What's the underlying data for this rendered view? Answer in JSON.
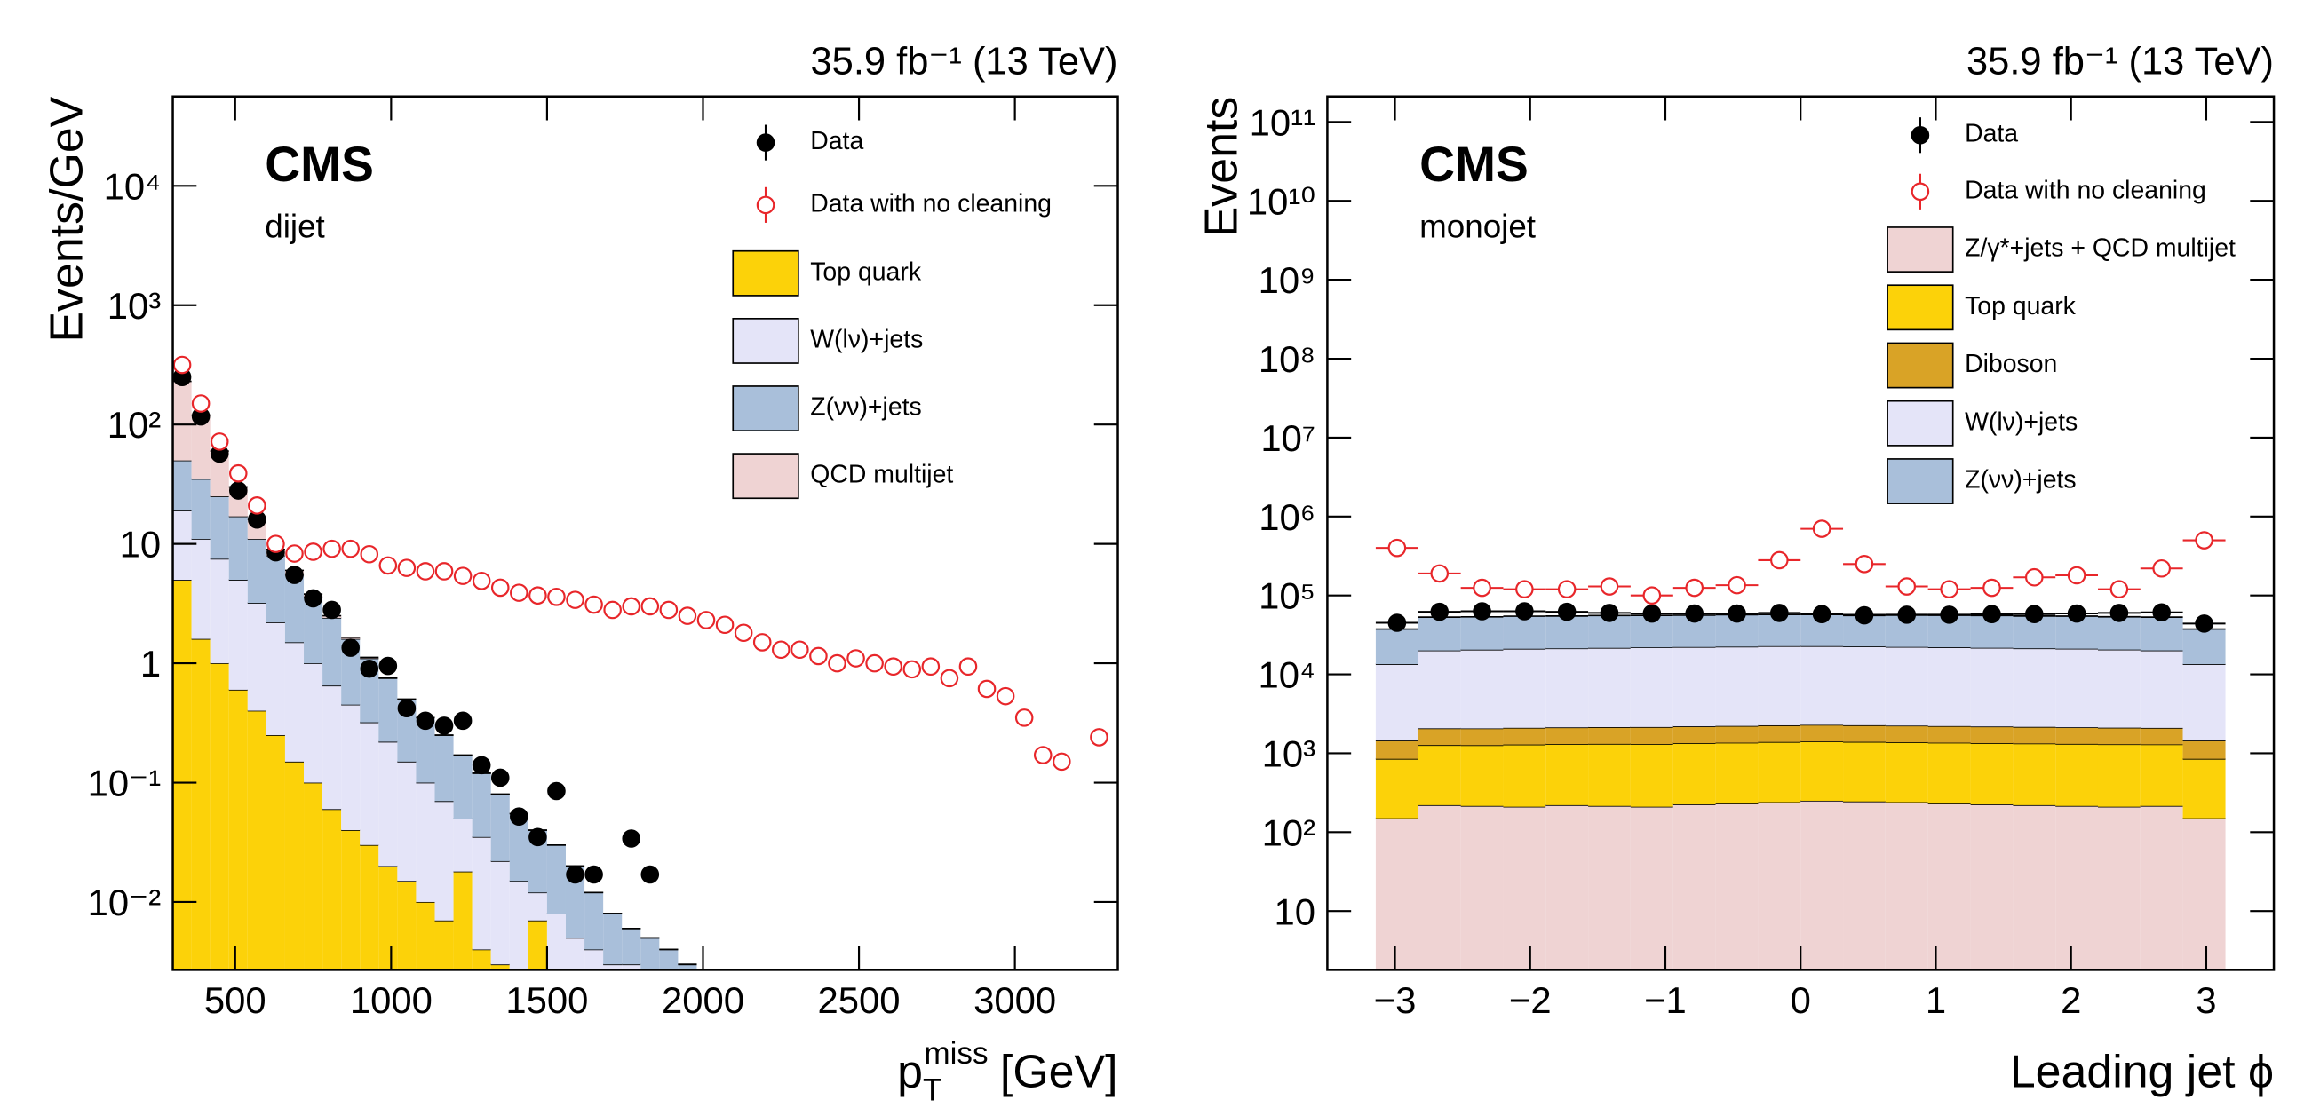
{
  "chart_data": [
    {
      "type": "stacked_histogram",
      "lumi": "35.9 fb⁻¹ (13 TeV)",
      "experiment": "CMS",
      "region": "dijet",
      "ylabel": "Events/GeV",
      "xlabel": {
        "symbol": "p",
        "sub": "T",
        "sup": "miss",
        "unit": "[GeV]"
      },
      "log_y": true,
      "xlim": [
        300,
        3330
      ],
      "ylim": [
        0.0027,
        56000
      ],
      "xticks": [
        500,
        1000,
        1500,
        2000,
        2500,
        3000
      ],
      "yticks": [
        {
          "value": 0.01,
          "label": "10⁻²"
        },
        {
          "value": 0.1,
          "label": "10⁻¹"
        },
        1,
        10,
        {
          "value": 100,
          "label": "10²"
        },
        {
          "value": 1000,
          "label": "10³"
        },
        {
          "value": 10000,
          "label": "10⁴"
        }
      ],
      "bins": [
        300,
        360,
        420,
        480,
        540,
        600,
        660,
        720,
        780,
        840,
        900,
        960,
        1020,
        1080,
        1140,
        1200,
        1260,
        1320,
        1380,
        1440,
        1500,
        1560,
        1620,
        1680,
        1740,
        1800,
        1860,
        1920,
        1980,
        2040,
        2100,
        2160,
        2220,
        2280,
        2340,
        2400,
        2460,
        2520,
        2580,
        2640,
        2700,
        2760,
        2820,
        2880,
        2940,
        3000,
        3060,
        3120,
        3180,
        3240,
        3300
      ],
      "points": [
        {
          "name": "Data",
          "color": "#000000",
          "marker": "filled",
          "values": [
            250,
            117,
            57,
            28,
            16,
            8.5,
            5.5,
            3.5,
            2.8,
            1.35,
            0.9,
            0.95,
            0.42,
            0.33,
            0.3,
            0.33,
            0.14,
            0.11,
            0.052,
            0.035,
            0.085,
            0.017,
            0.017,
            null,
            0.034,
            0.017,
            null,
            null,
            null,
            null,
            null,
            null,
            null,
            null,
            null,
            null,
            null,
            null,
            null,
            null,
            null,
            null,
            null,
            null,
            null,
            null,
            null,
            null,
            null,
            null
          ]
        },
        {
          "name": "Data with no cleaning",
          "color": "#e8262a",
          "marker": "open",
          "values": [
            316,
            150,
            72,
            39,
            21,
            10,
            8.3,
            8.6,
            9.1,
            9.1,
            8.2,
            6.6,
            6.3,
            5.9,
            5.9,
            5.4,
            4.9,
            4.3,
            3.9,
            3.7,
            3.6,
            3.4,
            3.1,
            2.8,
            3.0,
            3.0,
            2.8,
            2.5,
            2.3,
            2.1,
            1.8,
            1.5,
            1.3,
            1.3,
            1.15,
            1.0,
            1.1,
            1.0,
            0.94,
            0.89,
            0.94,
            0.75,
            0.94,
            0.61,
            0.53,
            0.35,
            0.17,
            0.15,
            null,
            0.24
          ]
        }
      ],
      "stack": [
        {
          "name": "Top quark",
          "color": "#fcd209",
          "values": [
            5,
            1.6,
            1.0,
            0.6,
            0.4,
            0.25,
            0.15,
            0.1,
            0.06,
            0.04,
            0.03,
            0.02,
            0.015,
            0.01,
            0.007,
            0.018,
            0.004,
            0.003,
            0.002,
            0.007,
            0.001,
            0,
            0,
            0,
            0,
            0,
            0,
            0,
            0,
            null,
            null,
            null,
            null,
            null,
            null,
            null,
            null,
            null,
            null,
            null,
            null,
            null,
            null,
            null,
            null,
            null,
            null,
            null,
            null,
            null
          ]
        },
        {
          "name": "W(lν)+jets",
          "color": "#e4e4f8",
          "values": [
            14,
            9.4,
            6.5,
            4.4,
            2.8,
            1.95,
            1.35,
            0.9,
            0.59,
            0.41,
            0.29,
            0.2,
            0.135,
            0.09,
            0.063,
            0.032,
            0.031,
            0.019,
            0.013,
            0.005,
            0.007,
            0.005,
            0.004,
            0.003,
            0.003,
            0.002,
            0.002,
            0.0015,
            0.001,
            null,
            null,
            null,
            null,
            null,
            null,
            null,
            null,
            null,
            null,
            null,
            null,
            null,
            null,
            null,
            null,
            null,
            null,
            null,
            null,
            null
          ]
        },
        {
          "name": "Z(νν)+jets",
          "color": "#a9bfda",
          "values": [
            31,
            24,
            17.5,
            12,
            7.8,
            5.8,
            4,
            2.6,
            1.75,
            1.15,
            0.78,
            0.53,
            0.35,
            0.25,
            0.18,
            0.12,
            0.085,
            0.058,
            0.04,
            0.028,
            0.022,
            0.015,
            0.008,
            0.005,
            0.003,
            0.003,
            0.002,
            0.0015,
            0.001,
            null,
            null,
            null,
            null,
            null,
            null,
            null,
            null,
            null,
            null,
            null,
            null,
            null,
            null,
            null,
            null,
            null,
            null,
            null,
            null,
            null
          ]
        },
        {
          "name": "QCD multijet",
          "color": "#efd3d3",
          "values": [
            180,
            85,
            35,
            13,
            5,
            1,
            0.5,
            0.2,
            0.1,
            0.05,
            0.02,
            0.01,
            0,
            0,
            0,
            0,
            0,
            0,
            0,
            0,
            0,
            0,
            0,
            0,
            0,
            0,
            0,
            0,
            0,
            null,
            null,
            null,
            null,
            null,
            null,
            null,
            null,
            null,
            null,
            null,
            null,
            null,
            null,
            null,
            null,
            null,
            null,
            null,
            null,
            null
          ]
        }
      ]
    },
    {
      "type": "stacked_histogram",
      "lumi": "35.9 fb⁻¹ (13 TeV)",
      "experiment": "CMS",
      "region": "monojet",
      "ylabel": "Events",
      "xlabel": {
        "symbol": "Leading jet ϕ"
      },
      "log_y": true,
      "bin_width_bars": true,
      "xlim": [
        -3.5,
        3.5
      ],
      "ylim": [
        1.8,
        210000000000
      ],
      "xticks": [
        {
          "value": -3,
          "label": "−3"
        },
        {
          "value": -2,
          "label": "−2"
        },
        {
          "value": -1,
          "label": "−1"
        },
        0,
        1,
        2,
        3
      ],
      "yticks": [
        10,
        {
          "value": 100,
          "label": "10²"
        },
        {
          "value": 1000,
          "label": "10³"
        },
        {
          "value": 10000,
          "label": "10⁴"
        },
        {
          "value": 100000,
          "label": "10⁵"
        },
        {
          "value": 1000000,
          "label": "10⁶"
        },
        {
          "value": 10000000,
          "label": "10⁷"
        },
        {
          "value": 100000000,
          "label": "10⁸"
        },
        {
          "value": 1000000000,
          "label": "10⁹"
        },
        {
          "value": 10000000000,
          "label": "10¹⁰"
        },
        {
          "value": 100000000000,
          "label": "10¹¹"
        }
      ],
      "bins": [
        -3.142,
        -2.827,
        -2.513,
        -2.199,
        -1.885,
        -1.571,
        -1.257,
        -0.942,
        -0.628,
        -0.314,
        0,
        0.314,
        0.628,
        0.942,
        1.257,
        1.571,
        1.885,
        2.199,
        2.513,
        2.827,
        3.142
      ],
      "points": [
        {
          "name": "Data",
          "color": "#000000",
          "marker": "filled",
          "values": [
            45000,
            62000,
            63000,
            63000,
            62000,
            60000,
            59000,
            59000,
            59000,
            60000,
            58000,
            56000,
            57000,
            57000,
            58000,
            58000,
            59000,
            60000,
            61000,
            44000
          ]
        },
        {
          "name": "Data with no cleaning",
          "color": "#e8262a",
          "marker": "open",
          "values": [
            400000,
            190000,
            125000,
            120000,
            120000,
            130000,
            100000,
            125000,
            135000,
            280000,
            700000,
            250000,
            130000,
            120000,
            125000,
            170000,
            180000,
            120000,
            220000,
            500000
          ]
        }
      ],
      "stack": [
        {
          "name": "Z/γ*+jets + QCD multijet",
          "color": "#efd3d3",
          "values": [
            150,
            220,
            215,
            210,
            220,
            215,
            210,
            225,
            230,
            240,
            250,
            245,
            240,
            230,
            225,
            220,
            215,
            210,
            215,
            150
          ]
        },
        {
          "name": "Top quark",
          "color": "#fcd209",
          "values": [
            700,
            1050,
            1050,
            1080,
            1090,
            1100,
            1100,
            1120,
            1130,
            1150,
            1160,
            1150,
            1140,
            1130,
            1120,
            1110,
            1100,
            1090,
            1080,
            700
          ]
        },
        {
          "name": "Diboson",
          "color": "#d9a326",
          "values": [
            600,
            800,
            800,
            810,
            820,
            830,
            840,
            850,
            860,
            870,
            880,
            870,
            860,
            850,
            840,
            830,
            820,
            810,
            800,
            600
          ]
        },
        {
          "name": "W(lν)+jets",
          "color": "#e4e4f8",
          "values": [
            12000,
            18000,
            18500,
            19000,
            19200,
            19500,
            19800,
            20000,
            20200,
            20500,
            20500,
            20300,
            20000,
            19800,
            19500,
            19200,
            19000,
            18500,
            18000,
            12000
          ]
        },
        {
          "name": "Z(νν)+jets",
          "color": "#a9bfda",
          "values": [
            24000,
            33000,
            33000,
            33500,
            33500,
            34000,
            34000,
            34000,
            34500,
            34500,
            34500,
            34500,
            34000,
            34000,
            34000,
            33500,
            33500,
            33000,
            33000,
            24000
          ]
        }
      ]
    }
  ]
}
